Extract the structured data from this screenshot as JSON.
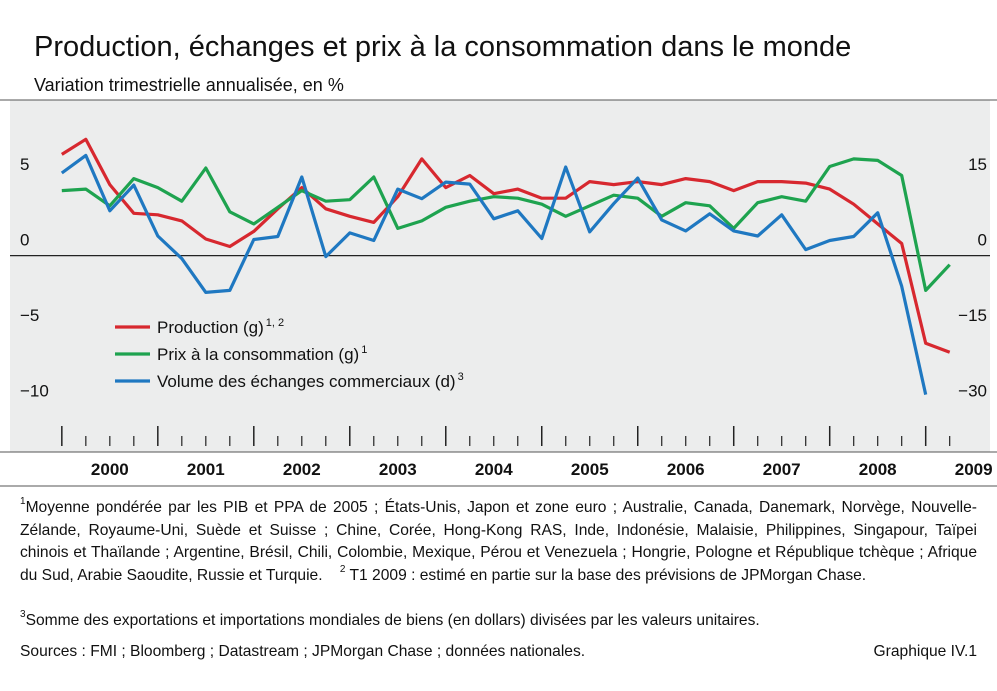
{
  "chart_data": {
    "type": "line",
    "title": "Production, échanges et prix à la consommation dans le monde",
    "subtitle": "Variation trimestrielle annualisée, en %",
    "x": [
      2000,
      2000.25,
      2000.5,
      2000.75,
      2001,
      2001.25,
      2001.5,
      2001.75,
      2002,
      2002.25,
      2002.5,
      2002.75,
      2003,
      2003.25,
      2003.5,
      2003.75,
      2004,
      2004.25,
      2004.5,
      2004.75,
      2005,
      2005.25,
      2005.5,
      2005.75,
      2006,
      2006.25,
      2006.5,
      2006.75,
      2007,
      2007.25,
      2007.5,
      2007.75,
      2008,
      2008.25,
      2008.5,
      2008.75,
      2009,
      2009.25
    ],
    "xlim": [
      1999.46,
      2009.67
    ],
    "xticks": [
      {
        "value": 2000,
        "label": "2000"
      },
      {
        "value": 2001,
        "label": "2001"
      },
      {
        "value": 2002,
        "label": "2002"
      },
      {
        "value": 2003,
        "label": "2003"
      },
      {
        "value": 2004,
        "label": "2004"
      },
      {
        "value": 2005,
        "label": "2005"
      },
      {
        "value": 2006,
        "label": "2006"
      },
      {
        "value": 2007,
        "label": "2007"
      },
      {
        "value": 2008,
        "label": "2008"
      },
      {
        "value": 2009,
        "label": "2009"
      }
    ],
    "ylim": [
      -13,
      10.3
    ],
    "yticks": [
      {
        "value": -10,
        "label": "−10"
      },
      {
        "value": -5,
        "label": "−5"
      },
      0,
      5
    ],
    "y2lim": [
      -39,
      30.9
    ],
    "y2ticks": [
      {
        "value": -30,
        "label": "−30"
      },
      {
        "value": -15,
        "label": "−15"
      },
      0,
      15
    ],
    "series": [
      {
        "name": "Production (g)",
        "name_sup": "1, 2",
        "color": "#d7282f",
        "values": [
          6.7,
          7.7,
          4.7,
          2.8,
          2.7,
          2.3,
          1.1,
          0.6,
          1.6,
          3.1,
          4.5,
          3.1,
          2.6,
          2.2,
          3.9,
          6.4,
          4.5,
          5.3,
          4.1,
          4.4,
          3.8,
          3.8,
          4.9,
          4.7,
          4.9,
          4.7,
          5.1,
          4.9,
          4.3,
          4.9,
          4.9,
          4.8,
          4.4,
          3.4,
          2.1,
          0.8,
          -5.8,
          -6.4
        ]
      },
      {
        "name": "Prix à la consommation (g)",
        "name_sup": "1",
        "color": "#1ea34f",
        "values": [
          4.3,
          4.4,
          3.3,
          5.1,
          4.5,
          3.6,
          5.8,
          2.9,
          2.1,
          3.2,
          4.3,
          3.6,
          3.7,
          5.2,
          1.8,
          2.3,
          3.2,
          3.6,
          3.9,
          3.8,
          3.4,
          2.6,
          3.3,
          4.0,
          3.8,
          2.6,
          3.5,
          3.3,
          1.8,
          3.5,
          3.9,
          3.6,
          5.9,
          6.4,
          6.3,
          5.3,
          -2.3,
          -0.6
        ]
      },
      {
        "name": "Volume des échanges commerciaux (d)",
        "name_sup": "3",
        "color": "#1f78c1",
        "axis": "y2",
        "values": [
          16.4,
          19.9,
          8.9,
          14.0,
          3.9,
          -0.6,
          -7.3,
          -6.9,
          3.2,
          3.8,
          15.6,
          -0.2,
          4.5,
          3.0,
          13.2,
          11.3,
          14.6,
          14.2,
          7.3,
          8.9,
          3.4,
          17.6,
          4.7,
          10.3,
          15.4,
          7.1,
          4.9,
          8.3,
          4.9,
          3.9,
          8.1,
          1.2,
          3.0,
          3.8,
          8.5,
          -6.1,
          -27.6,
          null
        ]
      }
    ]
  },
  "footnotes": [
    {
      "marker": "1",
      "text": "Moyenne pondérée par les PIB et PPA de 2005 ; États-Unis, Japon et zone euro ; Australie, Canada, Danemark, Norvège, Nouvelle-Zélande, Royaume-Uni, Suède et Suisse ; Chine, Corée, Hong-Kong RAS, Inde, Indonésie, Malaisie, Philippines, Singapour, Taïpei chinois et Thaïlande ; Argentine, Brésil, Chili, Colombie, Mexique, Pérou et Venezuela ; Hongrie, Pologne et République tchèque ; Afrique du Sud, Arabie Saoudite, Russie et Turquie."
    },
    {
      "marker": "2",
      "text": "T1 2009 : estimé en partie sur la base des prévisions de JPMorgan Chase."
    },
    {
      "marker": "3",
      "text": "Somme des exportations et importations mondiales de biens (en dollars) divisées par les valeurs unitaires."
    }
  ],
  "sources": "Sources : FMI ; Bloomberg ; Datastream ; JPMorgan Chase ; données nationales.",
  "figure_label": "Graphique IV.1"
}
